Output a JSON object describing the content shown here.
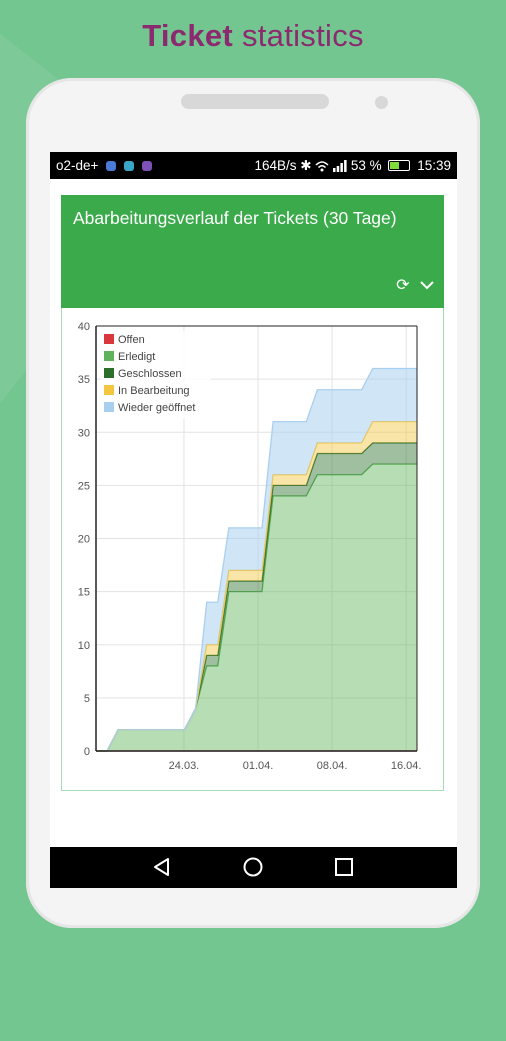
{
  "promo": {
    "title_bold": "Ticket",
    "title_rest": "statistics"
  },
  "status_bar": {
    "carrier": "o2-de+",
    "net_speed": "164B/s",
    "battery": "53 %",
    "time": "15:39",
    "app_icon_colors": [
      "#4a7bd8",
      "#39a7c7",
      "#7c52b8"
    ]
  },
  "panel": {
    "title": "Abarbeitungsverlauf der Tickets (30 Tage)",
    "refresh_icon": "refresh-icon",
    "collapse_icon": "chevron-down-icon",
    "header_color": "#3aaa4a"
  },
  "chart_data": {
    "type": "area",
    "stacked": true,
    "title": "",
    "xlabel": "",
    "ylabel": "",
    "x_labels": [
      "24.03.",
      "01.04.",
      "08.04.",
      "16.04."
    ],
    "ylim": [
      0,
      40
    ],
    "yticks": [
      0,
      5,
      10,
      15,
      20,
      25,
      30,
      35,
      40
    ],
    "grid": true,
    "legend_position": "top-left",
    "x": [
      0,
      1,
      2,
      3,
      4,
      5,
      6,
      7,
      8,
      9,
      10,
      11,
      12,
      13,
      14,
      15,
      16,
      17,
      18,
      19,
      20,
      21,
      22,
      23,
      24,
      25,
      26,
      27,
      28,
      29
    ],
    "series": [
      {
        "name": "Offen",
        "color": "#d9363e",
        "values": [
          0,
          0,
          0,
          0,
          0,
          0,
          0,
          0,
          0,
          0,
          0,
          0,
          0,
          0,
          0,
          0,
          0,
          0,
          0,
          0,
          0,
          0,
          0,
          0,
          0,
          0,
          0,
          0,
          0,
          0
        ]
      },
      {
        "name": "Erledigt",
        "color": "#5fb35a",
        "values": [
          0,
          0,
          2,
          2,
          2,
          2,
          2,
          2,
          2,
          4,
          8,
          8,
          15,
          15,
          15,
          15,
          24,
          24,
          24,
          24,
          26,
          26,
          26,
          26,
          26,
          27,
          27,
          27,
          27,
          27
        ]
      },
      {
        "name": "Geschlossen",
        "color": "#2c6e2c",
        "values": [
          0,
          0,
          0,
          0,
          0,
          0,
          0,
          0,
          0,
          0,
          1,
          1,
          1,
          1,
          1,
          1,
          1,
          1,
          1,
          1,
          2,
          2,
          2,
          2,
          2,
          2,
          2,
          2,
          2,
          2
        ]
      },
      {
        "name": "In Bearbeitung",
        "color": "#f4c541",
        "values": [
          0,
          0,
          0,
          0,
          0,
          0,
          0,
          0,
          0,
          0,
          1,
          1,
          1,
          1,
          1,
          1,
          1,
          1,
          1,
          1,
          1,
          1,
          1,
          1,
          1,
          2,
          2,
          2,
          2,
          2
        ]
      },
      {
        "name": "Wieder geöffnet",
        "color": "#a9cfee",
        "values": [
          0,
          0,
          0,
          0,
          0,
          0,
          0,
          0,
          0,
          0,
          4,
          4,
          4,
          4,
          4,
          4,
          5,
          5,
          5,
          5,
          5,
          5,
          5,
          5,
          5,
          5,
          5,
          5,
          5,
          5
        ]
      }
    ]
  },
  "nav": {
    "back_icon": "back-icon",
    "home_icon": "home-icon",
    "recents_icon": "recents-icon"
  }
}
